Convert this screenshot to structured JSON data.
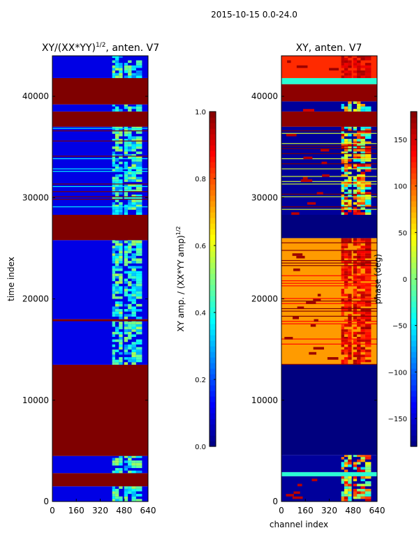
{
  "figure": {
    "suptitle": "2015-10-15 0.0-24.0"
  },
  "colors": {
    "jet": [
      "#00007f",
      "#0000ff",
      "#007fff",
      "#00ffff",
      "#7fff7f",
      "#ffff00",
      "#ff7f00",
      "#ff0000",
      "#7f0000"
    ]
  },
  "chart_data": [
    {
      "type": "heatmap",
      "title": "XY/(XX*YY)^1/2, anten. V7",
      "title_main": "XY/(XX*YY)",
      "title_exp": "1/2",
      "title_rest": ", anten. V7",
      "xlabel": "",
      "ylabel": "time index",
      "xlim": [
        0,
        640
      ],
      "ylim": [
        0,
        44000
      ],
      "xticks": [
        0,
        160,
        320,
        480,
        640
      ],
      "yticks": [
        0,
        10000,
        20000,
        30000,
        40000
      ],
      "colorbar": {
        "label_main": "XY amp. / (XX*YY amp)",
        "label_exp": "1/2",
        "range": [
          0.0,
          1.0
        ],
        "ticks": [
          0.0,
          0.2,
          0.4,
          0.6,
          0.8,
          1.0
        ],
        "tick_labels": [
          "0.0",
          "0.2",
          "0.4",
          "0.6",
          "0.8",
          "1.0"
        ]
      },
      "value_range": [
        0,
        1
      ],
      "bands": [
        {
          "y0": 0,
          "y1": 1500,
          "v": 0.1,
          "hot": 0.55
        },
        {
          "y0": 1500,
          "y1": 2800,
          "v": 1.0
        },
        {
          "y0": 2800,
          "y1": 4500,
          "v": 0.1,
          "hot": 0.55
        },
        {
          "y0": 4500,
          "y1": 13500,
          "v": 1.0
        },
        {
          "y0": 13500,
          "y1": 17800,
          "v": 0.1,
          "hot": 0.55
        },
        {
          "y0": 17800,
          "y1": 18000,
          "v": 1.0
        },
        {
          "y0": 18000,
          "y1": 25800,
          "v": 0.1,
          "hot": 0.55
        },
        {
          "y0": 25800,
          "y1": 28300,
          "v": 1.0
        },
        {
          "y0": 28300,
          "y1": 37000,
          "v": 0.1,
          "hot": 0.55,
          "stripes": 0.35
        },
        {
          "y0": 37000,
          "y1": 38500,
          "v": 1.0
        },
        {
          "y0": 38500,
          "y1": 39200,
          "v": 0.1,
          "hot": 0.55
        },
        {
          "y0": 39200,
          "y1": 41800,
          "v": 1.0
        },
        {
          "y0": 41800,
          "y1": 44000,
          "v": 0.1,
          "hot": 0.55
        }
      ]
    },
    {
      "type": "heatmap",
      "title": "XY, anten. V7",
      "xlabel": "channel index",
      "ylabel": "",
      "xlim": [
        0,
        640
      ],
      "ylim": [
        0,
        44000
      ],
      "xticks": [
        0,
        160,
        320,
        480,
        640
      ],
      "yticks": [
        0,
        10000,
        20000,
        30000,
        40000
      ],
      "colorbar": {
        "label": "phase (deg)",
        "range": [
          -180,
          180
        ],
        "ticks": [
          -150,
          -100,
          -50,
          0,
          50,
          100,
          150
        ],
        "tick_labels": [
          "−150",
          "−100",
          "−50",
          "0",
          "50",
          "100",
          "150"
        ]
      },
      "value_range": [
        -180,
        180
      ],
      "bands": [
        {
          "y0": 0,
          "y1": 2500,
          "v": -170,
          "hot": 160
        },
        {
          "y0": 2500,
          "y1": 2900,
          "v": -30
        },
        {
          "y0": 2900,
          "y1": 4600,
          "v": -170,
          "hot": 160
        },
        {
          "y0": 4600,
          "y1": 13500,
          "v": -180
        },
        {
          "y0": 13500,
          "y1": 26000,
          "v": 80,
          "hot": 170,
          "stripes": 0.45
        },
        {
          "y0": 26000,
          "y1": 28300,
          "v": -180
        },
        {
          "y0": 28300,
          "y1": 37000,
          "v": -170,
          "hot": 160,
          "stripes": 0.4
        },
        {
          "y0": 37000,
          "y1": 38500,
          "v": 175
        },
        {
          "y0": 38500,
          "y1": 39500,
          "v": -170,
          "hot": 150
        },
        {
          "y0": 39500,
          "y1": 41200,
          "v": 175
        },
        {
          "y0": 41200,
          "y1": 41800,
          "v": -30
        },
        {
          "y0": 41800,
          "y1": 44000,
          "v": 120,
          "hot": 170
        }
      ]
    }
  ]
}
